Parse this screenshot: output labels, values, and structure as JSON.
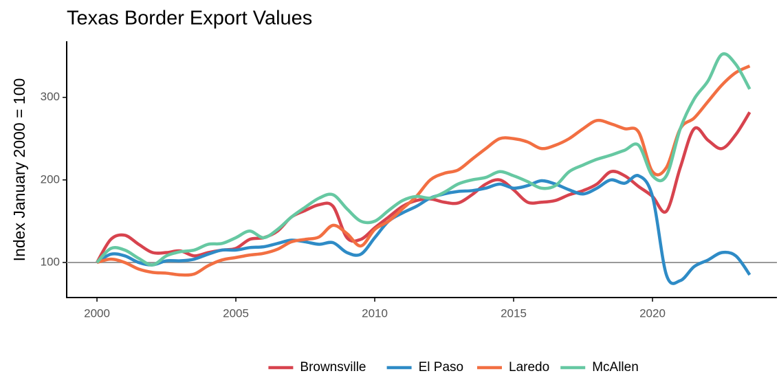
{
  "chart_data": {
    "type": "line",
    "title": "Texas Border Export Values",
    "y_label": "Index January 2000 = 100",
    "x": [
      2000,
      2000.5,
      2001,
      2001.5,
      2002,
      2002.5,
      2003,
      2003.5,
      2004,
      2004.5,
      2005,
      2005.5,
      2006,
      2006.5,
      2007,
      2007.5,
      2008,
      2008.5,
      2009,
      2009.5,
      2010,
      2010.5,
      2011,
      2011.5,
      2012,
      2012.5,
      2013,
      2013.5,
      2014,
      2014.5,
      2015,
      2015.5,
      2016,
      2016.5,
      2017,
      2017.5,
      2018,
      2018.5,
      2019,
      2019.5,
      2020,
      2020.5,
      2021,
      2021.5,
      2022,
      2022.5,
      2023,
      2023.5
    ],
    "series": [
      {
        "name": "Brownsville",
        "color": "#d7434e",
        "values": [
          100,
          128,
          133,
          122,
          112,
          112,
          114,
          108,
          112,
          115,
          117,
          128,
          130,
          138,
          155,
          163,
          170,
          168,
          130,
          128,
          142,
          155,
          168,
          175,
          177,
          173,
          172,
          182,
          195,
          200,
          188,
          173,
          173,
          175,
          182,
          187,
          195,
          210,
          205,
          192,
          180,
          162,
          215,
          262,
          248,
          238,
          255,
          282
        ]
      },
      {
        "name": "El Paso",
        "color": "#2e8bc6",
        "values": [
          100,
          110,
          108,
          100,
          97,
          102,
          102,
          104,
          110,
          115,
          115,
          118,
          119,
          123,
          127,
          125,
          122,
          124,
          112,
          110,
          130,
          150,
          160,
          168,
          178,
          183,
          186,
          187,
          190,
          195,
          190,
          193,
          199,
          195,
          188,
          183,
          190,
          200,
          196,
          205,
          180,
          85,
          78,
          95,
          103,
          112,
          108,
          85
        ]
      },
      {
        "name": "Laredo",
        "color": "#f26f42",
        "values": [
          100,
          104,
          100,
          92,
          88,
          87,
          85,
          86,
          96,
          103,
          106,
          109,
          111,
          116,
          125,
          128,
          131,
          145,
          135,
          120,
          140,
          150,
          165,
          180,
          200,
          208,
          212,
          225,
          238,
          250,
          250,
          246,
          238,
          242,
          250,
          262,
          272,
          268,
          262,
          258,
          210,
          215,
          262,
          275,
          295,
          315,
          330,
          338
        ]
      },
      {
        "name": "McAllen",
        "color": "#66c8a2",
        "values": [
          100,
          117,
          115,
          105,
          97,
          108,
          113,
          115,
          122,
          123,
          130,
          138,
          130,
          140,
          155,
          167,
          178,
          182,
          165,
          150,
          150,
          163,
          175,
          180,
          178,
          185,
          195,
          200,
          203,
          210,
          205,
          198,
          190,
          193,
          210,
          218,
          225,
          230,
          236,
          242,
          205,
          205,
          262,
          298,
          320,
          352,
          340,
          310
        ]
      }
    ],
    "xlim": [
      1998.91,
      2024.48
    ],
    "xticks": [
      2000,
      2005,
      2010,
      2015,
      2020
    ],
    "ylim": [
      57.5,
      368
    ],
    "yticks": [
      100,
      200,
      300
    ],
    "hline": 100,
    "legend": "bottom"
  }
}
